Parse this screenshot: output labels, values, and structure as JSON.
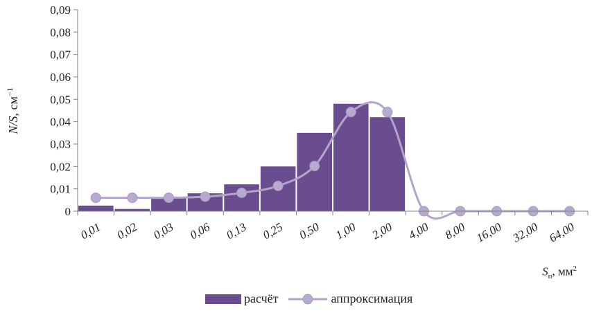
{
  "colors": {
    "bar": "#6a4d8f",
    "line": "#b3a4cc",
    "marker": "#b7aacf",
    "axis": "#7f7f7f"
  },
  "chart_data": {
    "type": "bar+line",
    "categories": [
      "0,01",
      "0,02",
      "0,03",
      "0,06",
      "0,13",
      "0,25",
      "0,50",
      "1,00",
      "2,00",
      "4,00",
      "8,00",
      "16,00",
      "32,00",
      "64,00"
    ],
    "series": [
      {
        "name": "расчёт",
        "type": "bar",
        "values": [
          0.0025,
          0.001,
          0.006,
          0.008,
          0.012,
          0.02,
          0.035,
          0.048,
          0.042,
          0,
          0,
          0,
          0,
          0
        ]
      },
      {
        "name": "аппроксимация",
        "type": "line-smooth",
        "values": [
          0.006,
          0.006,
          0.006,
          0.0065,
          0.0082,
          0.0113,
          0.0202,
          0.0443,
          0.0443,
          0,
          0,
          0,
          0,
          0
        ]
      }
    ],
    "ylim": [
      0,
      0.09
    ],
    "yticks": [
      "0",
      "0,01",
      "0,02",
      "0,03",
      "0,04",
      "0,05",
      "0,06",
      "0,07",
      "0,08",
      "0,09"
    ],
    "ylabel_italic": "N/S",
    "ylabel_rest": ", см",
    "ylabel_sup": "−1",
    "xlabel_italic": "S",
    "xlabel_sub": "п",
    "xlabel_rest": ", мм",
    "xlabel_sup": "2",
    "legend_position": "bottom"
  }
}
